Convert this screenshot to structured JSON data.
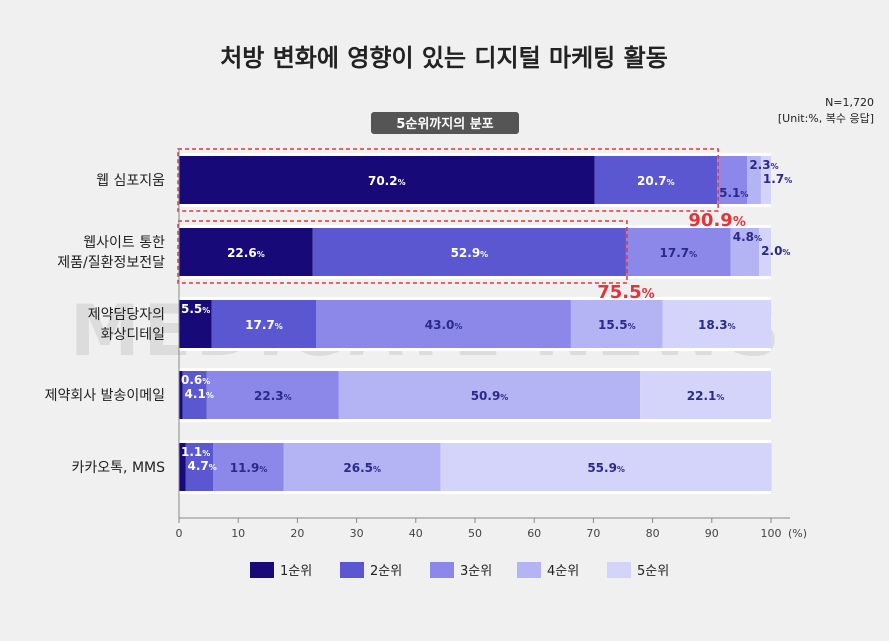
{
  "title": "처방 변화에 영향이 있는 디지털 마케팅 활동",
  "subtitle": "5순위까지의 분포",
  "sample_note": "N=1,720",
  "unit_note": "[Unit:%, 복수 응답]",
  "percent_sign": "%",
  "watermark": "MEDIGATE NEWS",
  "colors": [
    "#170a78",
    "#5a57d1",
    "#8b88ea",
    "#b4b3f3",
    "#d4d4fa"
  ],
  "highlight_color": "#e0353a",
  "chart_data": {
    "type": "bar",
    "orientation": "horizontal",
    "stacked": true,
    "categories": [
      [
        "웹 심포지움"
      ],
      [
        "웹사이트 통한",
        "제품/질환정보전달"
      ],
      [
        "제약담당자의",
        "화상디테일"
      ],
      [
        "제약회사 발송이메일"
      ],
      [
        "카카오톡, MMS"
      ]
    ],
    "series": [
      {
        "name": "1순위",
        "values": [
          70.2,
          22.6,
          5.5,
          0.6,
          1.1
        ]
      },
      {
        "name": "2순위",
        "values": [
          20.7,
          52.9,
          17.7,
          4.1,
          4.7
        ]
      },
      {
        "name": "3순위",
        "values": [
          5.1,
          17.7,
          43.0,
          22.3,
          11.9
        ]
      },
      {
        "name": "4순위",
        "values": [
          2.3,
          4.8,
          15.5,
          50.9,
          26.5
        ]
      },
      {
        "name": "5순위",
        "values": [
          1.7,
          2.0,
          18.3,
          22.1,
          55.9
        ]
      }
    ],
    "highlights": [
      {
        "category_index": 0,
        "value": 90.9
      },
      {
        "category_index": 1,
        "value": 75.5
      }
    ],
    "x_ticks": [
      0,
      10,
      20,
      30,
      40,
      50,
      60,
      70,
      80,
      90,
      100
    ],
    "x_unit_label": "(%)",
    "xlim": [
      0,
      100
    ],
    "legend_position": "bottom",
    "grid": false
  }
}
